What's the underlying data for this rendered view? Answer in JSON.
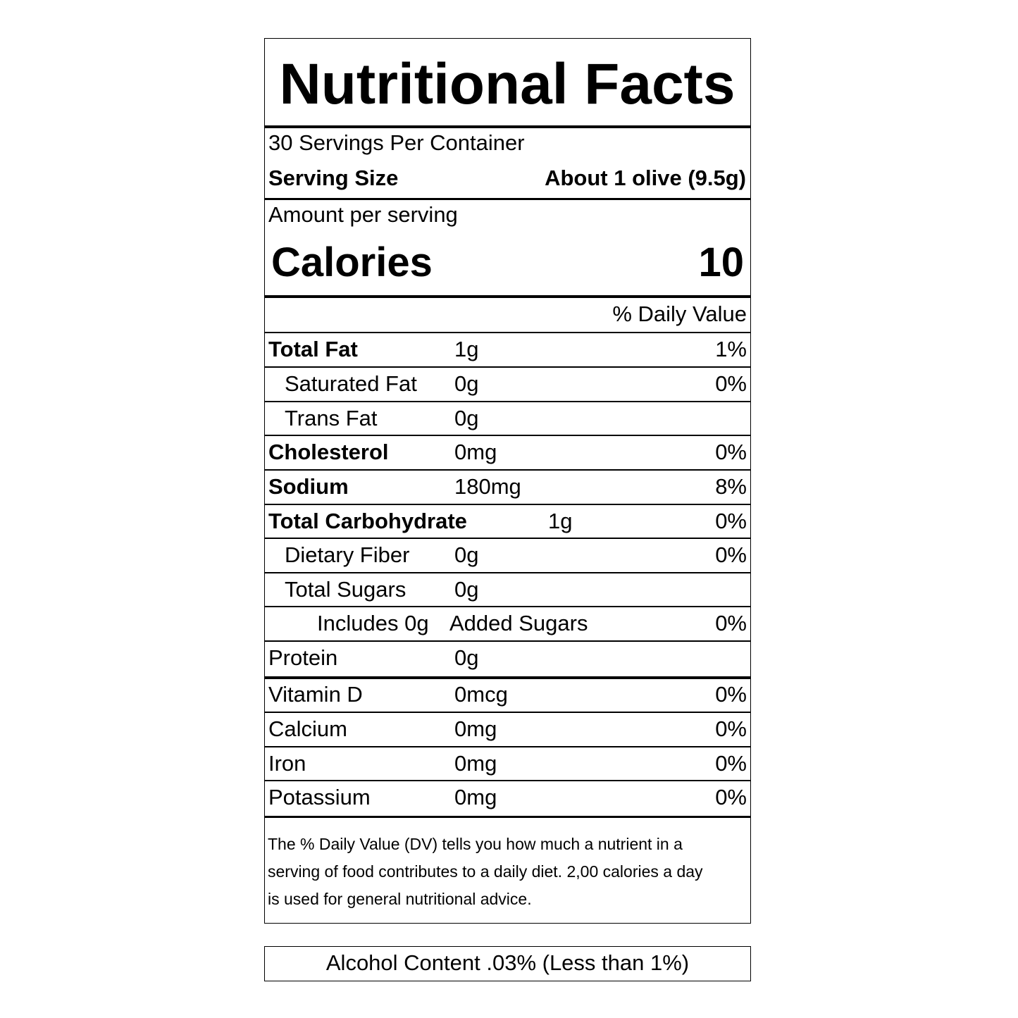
{
  "header": {
    "title": "Nutritional Facts"
  },
  "servings_per_container": "30 Servings Per Container",
  "serving_size": {
    "label": "Serving Size",
    "value": "About 1 olive (9.5g)"
  },
  "amount_per_serving": "Amount per serving",
  "calories": {
    "label": "Calories",
    "value": "10"
  },
  "daily_value_header": "% Daily Value",
  "nutrients": [
    {
      "name": "Total Fat",
      "amount": "1g",
      "dv": "1%"
    },
    {
      "name": "Saturated Fat",
      "amount": "0g",
      "dv": "0%"
    },
    {
      "name": "Trans Fat",
      "amount": "0g"
    },
    {
      "name": "Cholesterol",
      "amount": "0mg",
      "dv": "0%"
    },
    {
      "name": "Sodium",
      "amount": "180mg",
      "dv": "8%"
    },
    {
      "name": "Total Carbohydrate",
      "amount": "1g",
      "dv": "0%"
    },
    {
      "name": "Dietary Fiber",
      "amount": "0g",
      "dv": "0%"
    },
    {
      "name": "Total Sugars",
      "amount": "0g"
    },
    {
      "name": "Includes 0g",
      "amount": "Added Sugars",
      "dv": "0%"
    },
    {
      "name": "Protein",
      "amount": "0g"
    },
    {
      "name": "Vitamin D",
      "amount": "0mcg",
      "dv": "0%"
    },
    {
      "name": "Calcium",
      "amount": "0mg",
      "dv": "0%"
    },
    {
      "name": "Iron",
      "amount": "0mg",
      "dv": "0%"
    },
    {
      "name": "Potassium",
      "amount": "0mg",
      "dv": "0%"
    }
  ],
  "footnote": [
    "The % Daily Value (DV) tells you how much a nutrient in a",
    "serving of food contributes to a daily diet.  2,00 calories a day",
    "is used for general nutritional advice."
  ],
  "alcohol_content": "Alcohol Content .03% (Less than 1%)"
}
